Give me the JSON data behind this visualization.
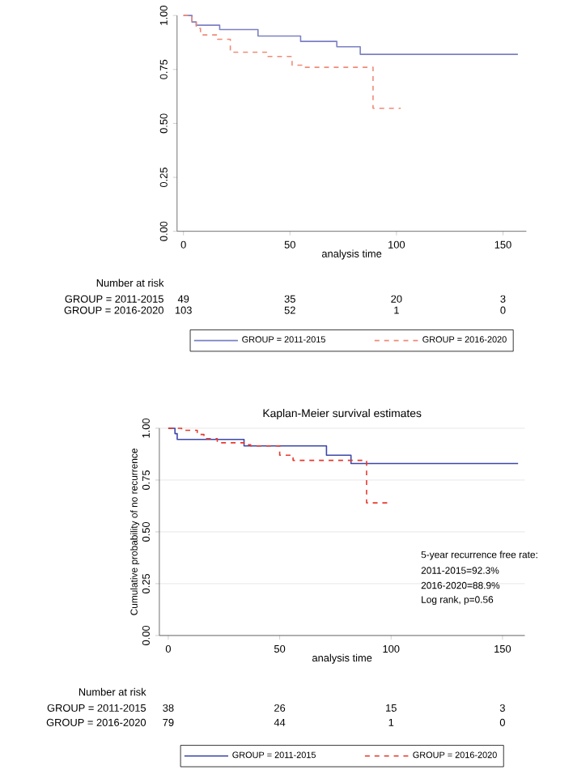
{
  "chart_data": [
    {
      "type": "step",
      "xlabel": "analysis time",
      "xlim": [
        -3,
        161
      ],
      "ylim": [
        0,
        1
      ],
      "xticks": [
        0,
        50,
        100,
        150
      ],
      "yticks": [
        {
          "value": 0,
          "label": "0.00"
        },
        {
          "value": 0.25,
          "label": "0.25"
        },
        {
          "value": 0.5,
          "label": "0.50"
        },
        {
          "value": 0.75,
          "label": "0.75"
        },
        {
          "value": 1,
          "label": "1.00"
        }
      ],
      "legend": "bottom",
      "series": [
        {
          "name": "GROUP = 2011-2015",
          "color": "#7b80c4",
          "line_style": "solid",
          "x": [
            0,
            4,
            6,
            17,
            35,
            55,
            72,
            83,
            157
          ],
          "values": [
            1,
            0.97,
            0.955,
            0.935,
            0.905,
            0.88,
            0.855,
            0.82,
            0.82
          ]
        },
        {
          "name": "GROUP = 2016-2020",
          "color": "#f08a78",
          "line_style": "dashed",
          "x": [
            0,
            4,
            6,
            8,
            16,
            22,
            39,
            51,
            56,
            89,
            102
          ],
          "values": [
            1,
            0.97,
            0.94,
            0.91,
            0.89,
            0.83,
            0.81,
            0.77,
            0.76,
            0.57,
            0.57
          ]
        }
      ],
      "annotations": [
        "Number at risk",
        "GROUP = 2011-2015",
        "49",
        "35",
        "20",
        "3",
        "GROUP = 2016-2020",
        "103",
        "52",
        "1",
        "0"
      ]
    },
    {
      "type": "step",
      "title": "Kaplan-Meier survival estimates",
      "xlabel": "analysis time",
      "ylabel": "Cumulative probability of no recurrence",
      "xlim": [
        -4,
        160
      ],
      "ylim": [
        0,
        1
      ],
      "xticks": [
        0,
        50,
        100,
        150
      ],
      "yticks": [
        {
          "value": 0,
          "label": "0.00"
        },
        {
          "value": 0.25,
          "label": "0.25"
        },
        {
          "value": 0.5,
          "label": "0.50"
        },
        {
          "value": 0.75,
          "label": "0.75"
        },
        {
          "value": 1,
          "label": "1.00"
        }
      ],
      "grid": "y",
      "legend": "bottom",
      "series": [
        {
          "name": "GROUP = 2011-2015",
          "color": "#3c48a8",
          "line_style": "solid",
          "x": [
            0,
            3,
            4,
            34,
            71,
            82,
            157
          ],
          "values": [
            1,
            0.974,
            0.946,
            0.915,
            0.87,
            0.83,
            0.83
          ]
        },
        {
          "name": "GROUP = 2016-2020",
          "color": "#e8382e",
          "line_style": "dashed",
          "x": [
            0,
            6,
            13,
            16,
            22,
            34,
            37,
            50,
            56,
            89,
            100
          ],
          "values": [
            1,
            0.99,
            0.97,
            0.95,
            0.93,
            0.92,
            0.915,
            0.87,
            0.845,
            0.64,
            0.64
          ]
        }
      ],
      "annotations": [
        "Number at risk",
        "GROUP = 2011-2015",
        "38",
        "26",
        "15",
        "3",
        "GROUP = 2016-2020",
        "79",
        "44",
        "1",
        "0",
        "5-year recurrence free rate:",
        "2011-2015=92.3%",
        "2016-2020=88.9%",
        "Log rank, p=0.56"
      ]
    }
  ]
}
